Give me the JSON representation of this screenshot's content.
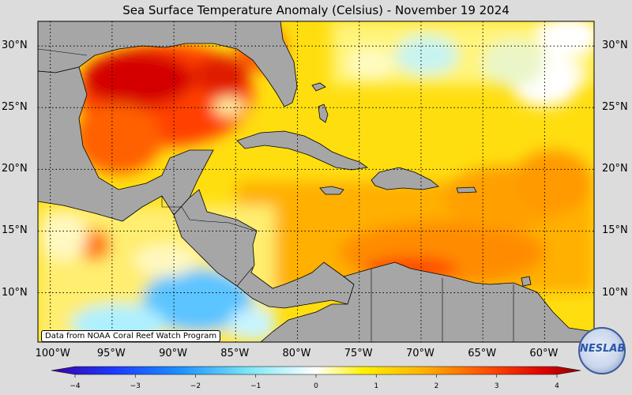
{
  "title": "Sea Surface Temperature Anomaly (Celsius) - November 19 2024",
  "credit": "Data from NOAA Coral Reef Watch Program",
  "logo_text": "NESLAB",
  "lat_labels": [
    "30°N",
    "25°N",
    "20°N",
    "15°N",
    "10°N"
  ],
  "lon_labels": [
    "100°W",
    "95°W",
    "90°W",
    "85°W",
    "80°W",
    "75°W",
    "70°W",
    "65°W",
    "60°W"
  ],
  "colorbar": {
    "labels": [
      "−4",
      "−3",
      "−2",
      "−1",
      "0",
      "1",
      "2",
      "3",
      "4"
    ],
    "min": -4,
    "max": 4,
    "unit": "Celsius"
  },
  "colors": {
    "land": "#a6a6a6",
    "background": "#dcdcdc"
  },
  "region": {
    "lon_min": -101,
    "lon_max": -56,
    "lat_min": 6,
    "lat_max": 32
  }
}
